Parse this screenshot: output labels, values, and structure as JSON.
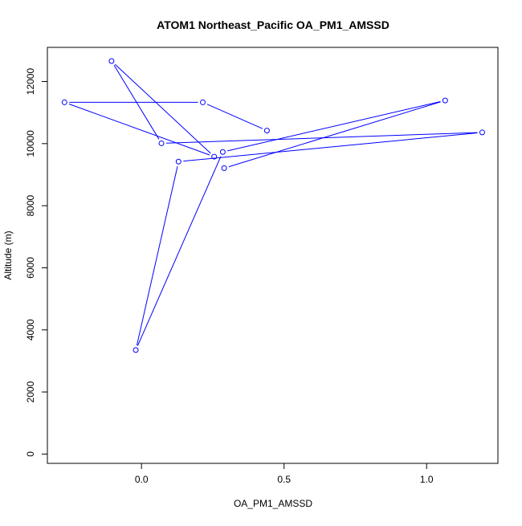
{
  "chart_data": {
    "type": "line",
    "title": "ATOM1 Northeast_Pacific OA_PM1_AMSSD",
    "xlabel": "OA_PM1_AMSSD",
    "ylabel": "Altitude (m)",
    "xlim": [
      -0.33,
      1.25
    ],
    "ylim": [
      -300,
      13100
    ],
    "x_ticks": [
      0.0,
      0.5,
      1.0
    ],
    "x_tick_labels": [
      "0.0",
      "0.5",
      "1.0"
    ],
    "y_ticks": [
      0,
      2000,
      4000,
      6000,
      8000,
      10000,
      12000
    ],
    "y_tick_labels": [
      "0",
      "2000",
      "4000",
      "6000",
      "8000",
      "10000",
      "12000"
    ],
    "grid": false,
    "marker": "open-circle",
    "series": [
      {
        "color": "#0000ff",
        "points": [
          {
            "x": 0.44,
            "y": 10420
          },
          {
            "x": 0.215,
            "y": 11330
          },
          {
            "x": -0.27,
            "y": 11330
          },
          {
            "x": 0.255,
            "y": 9580
          },
          {
            "x": -0.105,
            "y": 12660
          },
          {
            "x": 0.07,
            "y": 10010
          },
          {
            "x": 1.195,
            "y": 10360
          },
          {
            "x": 0.13,
            "y": 9420
          },
          {
            "x": -0.02,
            "y": 3350
          },
          {
            "x": 0.285,
            "y": 9730
          },
          {
            "x": 1.065,
            "y": 11390
          },
          {
            "x": 0.29,
            "y": 9210
          }
        ]
      }
    ]
  }
}
